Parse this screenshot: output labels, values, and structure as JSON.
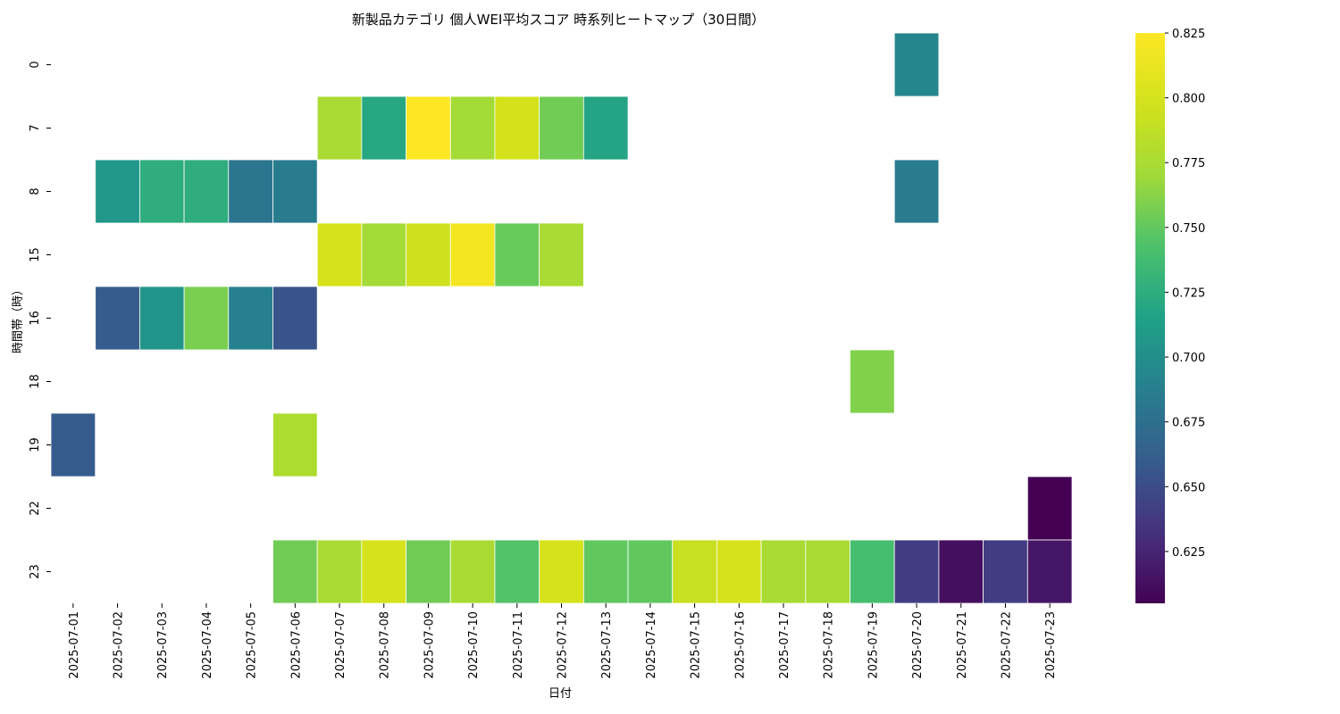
{
  "chart_data": {
    "type": "heatmap",
    "title": "新製品カテゴリ 個人WEI平均スコア 時系列ヒートマップ（30日間）",
    "xlabel": "日付",
    "ylabel": "時間帯（時）",
    "colormap": "viridis",
    "x": [
      "2025-07-01",
      "2025-07-02",
      "2025-07-03",
      "2025-07-04",
      "2025-07-05",
      "2025-07-06",
      "2025-07-07",
      "2025-07-08",
      "2025-07-09",
      "2025-07-10",
      "2025-07-11",
      "2025-07-12",
      "2025-07-13",
      "2025-07-14",
      "2025-07-15",
      "2025-07-16",
      "2025-07-17",
      "2025-07-18",
      "2025-07-19",
      "2025-07-20",
      "2025-07-21",
      "2025-07-22",
      "2025-07-23"
    ],
    "y": [
      "0",
      "7",
      "8",
      "15",
      "16",
      "18",
      "19",
      "22",
      "23"
    ],
    "values": [
      [
        null,
        null,
        null,
        null,
        null,
        null,
        null,
        null,
        null,
        null,
        null,
        null,
        null,
        null,
        null,
        null,
        null,
        null,
        null,
        0.693,
        null,
        null,
        null
      ],
      [
        null,
        null,
        null,
        null,
        null,
        null,
        0.775,
        0.72,
        0.825,
        0.772,
        0.798,
        0.755,
        0.718,
        null,
        null,
        null,
        null,
        null,
        null,
        null,
        null,
        null,
        null
      ],
      [
        null,
        0.708,
        0.725,
        0.725,
        0.68,
        0.685,
        null,
        null,
        null,
        null,
        null,
        null,
        null,
        null,
        null,
        null,
        null,
        null,
        null,
        0.685,
        null,
        null,
        null
      ],
      [
        null,
        null,
        null,
        null,
        null,
        null,
        0.8,
        0.773,
        0.795,
        0.82,
        0.752,
        0.775,
        null,
        null,
        null,
        null,
        null,
        null,
        null,
        null,
        null,
        null,
        null
      ],
      [
        null,
        0.66,
        0.705,
        0.758,
        0.688,
        0.655,
        null,
        null,
        null,
        null,
        null,
        null,
        null,
        null,
        null,
        null,
        null,
        null,
        null,
        null,
        null,
        null,
        null
      ],
      [
        null,
        null,
        null,
        null,
        null,
        null,
        null,
        null,
        null,
        null,
        null,
        null,
        null,
        null,
        null,
        null,
        null,
        null,
        0.76,
        null,
        null,
        null,
        null
      ],
      [
        0.66,
        null,
        null,
        null,
        null,
        0.777,
        null,
        null,
        null,
        null,
        null,
        null,
        null,
        null,
        null,
        null,
        null,
        null,
        null,
        null,
        null,
        null,
        null
      ],
      [
        null,
        null,
        null,
        null,
        null,
        null,
        null,
        null,
        null,
        null,
        null,
        null,
        null,
        null,
        null,
        null,
        null,
        null,
        null,
        null,
        null,
        null,
        0.605
      ],
      [
        null,
        null,
        null,
        null,
        null,
        0.755,
        0.775,
        0.8,
        0.755,
        0.775,
        0.745,
        0.8,
        0.75,
        0.75,
        0.792,
        0.8,
        0.775,
        0.775,
        0.74,
        0.64,
        0.613,
        0.64,
        0.617
      ]
    ],
    "vmin": 0.605,
    "vmax": 0.825,
    "colorbar_ticks": [
      "0.625",
      "0.650",
      "0.675",
      "0.700",
      "0.725",
      "0.750",
      "0.775",
      "0.800",
      "0.825"
    ],
    "grid": false
  }
}
